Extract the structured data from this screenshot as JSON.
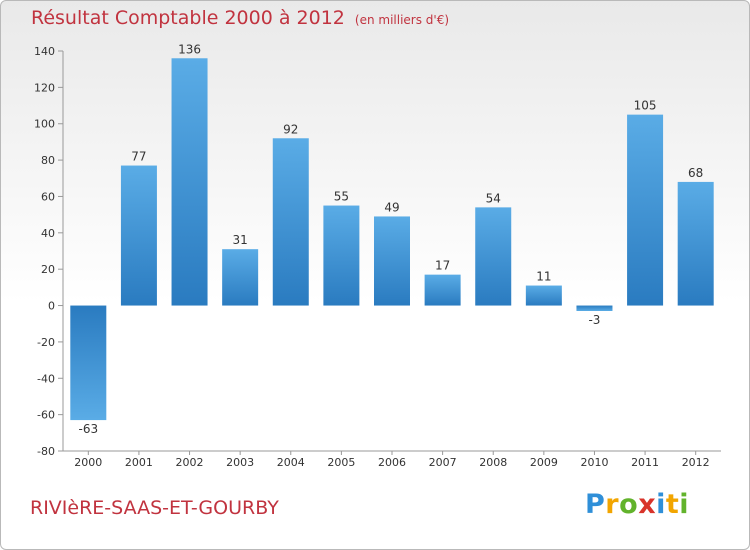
{
  "header": {
    "title": "Résultat Comptable 2000 à 2012",
    "subtitle": "(en milliers d'€)"
  },
  "footer": {
    "commune": "RIVIèRE-SAAS-ET-GOURBY",
    "logo": "Proxiti"
  },
  "colors": {
    "bar_light": "#5aace6",
    "bar_dark": "#2a7bc0",
    "title": "#c1333f"
  },
  "chart_data": {
    "type": "bar",
    "title": "Résultat Comptable 2000 à 2012",
    "subtitle": "(en milliers d'€)",
    "categories": [
      "2000",
      "2001",
      "2002",
      "2003",
      "2004",
      "2005",
      "2006",
      "2007",
      "2008",
      "2009",
      "2010",
      "2011",
      "2012"
    ],
    "values": [
      -63,
      77,
      136,
      31,
      92,
      55,
      49,
      17,
      54,
      11,
      -3,
      105,
      68
    ],
    "ylim": [
      -80,
      140
    ],
    "yticks": [
      -80,
      -60,
      -40,
      -20,
      0,
      20,
      40,
      60,
      80,
      100,
      120,
      140
    ],
    "grid": false
  }
}
